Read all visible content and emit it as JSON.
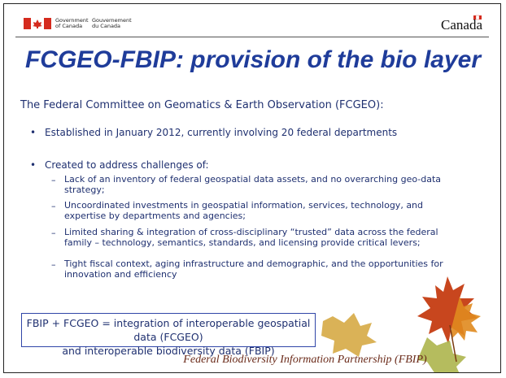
{
  "header": {
    "government_en": "Government of Canada",
    "government_fr": "Gouvernement du Canada",
    "wordmark": "Canada"
  },
  "title": "FCGEO-FBIP: provision of the bio layer",
  "intro": "The Federal Committee on Geomatics & Earth Observation (FCGEO):",
  "bullets": [
    {
      "text": "Established in January 2012, currently involving 20 federal departments",
      "sub": []
    },
    {
      "text": "Created to address challenges of:",
      "sub": [
        "Lack of an inventory of federal geospatial data assets, and no overarching geo-data strategy;",
        "Uncoordinated investments in geospatial information, services, technology, and expertise by departments and agencies;",
        "Limited sharing & integration of cross-disciplinary “trusted” data across the federal family – technology, semantics, standards, and licensing provide critical levers;",
        "Tight fiscal context, aging infrastructure and demographic, and the opportunities for innovation and efficiency"
      ]
    }
  ],
  "box": [
    "FBIP + FCGEO = integration of interoperable geospatial data (FCGEO)",
    "and interoperable biodiversity data (FBIP)"
  ],
  "footer": "Federal Biodiversity Information Partnership (FBIP)"
}
